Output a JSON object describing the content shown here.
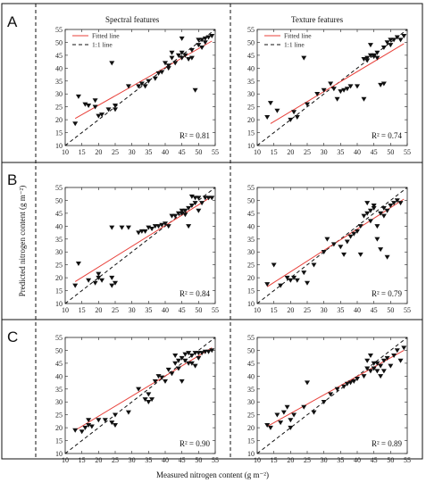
{
  "figure": {
    "xlabel": "Measured nitrogen content  (g m⁻²)",
    "ylabel": "Predicted nitrogen content  (g m⁻²)",
    "columns": [
      "Spectral features",
      "Texture features"
    ],
    "rows": [
      "A",
      "B",
      "C"
    ],
    "legend": {
      "fitted": "Fitted line",
      "one_to_one": "1:1 line"
    },
    "colors": {
      "fitted": "#e8403a",
      "one_to_one": "#111111",
      "marker": "#111111"
    }
  },
  "chart_data": [
    {
      "type": "scatter",
      "row": "A",
      "column": "Spectral features",
      "r2_label": "R² = 0.81",
      "xlim": [
        10,
        55
      ],
      "ylim": [
        10,
        55
      ],
      "xticks": [
        10,
        15,
        20,
        25,
        30,
        35,
        40,
        45,
        50,
        55
      ],
      "yticks": [
        10,
        15,
        20,
        25,
        30,
        35,
        40,
        45,
        50,
        55
      ],
      "fit": [
        [
          13,
          20.5
        ],
        [
          54,
          50.5
        ]
      ],
      "points": [
        [
          13,
          18.5
        ],
        [
          14,
          29
        ],
        [
          16,
          26
        ],
        [
          17,
          25.5
        ],
        [
          19,
          27.5
        ],
        [
          19,
          25
        ],
        [
          20,
          21.5
        ],
        [
          21,
          22
        ],
        [
          23,
          24
        ],
        [
          24,
          42
        ],
        [
          25,
          25.5
        ],
        [
          25,
          24
        ],
        [
          29,
          33
        ],
        [
          32,
          33
        ],
        [
          33,
          34
        ],
        [
          34,
          33
        ],
        [
          35,
          35
        ],
        [
          37,
          36
        ],
        [
          38,
          38
        ],
        [
          39,
          38.5
        ],
        [
          40,
          42
        ],
        [
          41,
          41
        ],
        [
          41,
          40
        ],
        [
          42,
          44
        ],
        [
          42,
          46
        ],
        [
          43,
          42
        ],
        [
          44,
          45
        ],
        [
          45,
          44
        ],
        [
          45,
          46
        ],
        [
          45,
          51.5
        ],
        [
          46,
          45
        ],
        [
          47,
          43.5
        ],
        [
          48,
          47
        ],
        [
          48,
          44
        ],
        [
          49,
          31.5
        ],
        [
          50,
          51
        ],
        [
          50,
          49
        ],
        [
          51,
          51
        ],
        [
          51,
          48
        ],
        [
          52,
          51.5
        ],
        [
          53,
          52
        ],
        [
          54,
          52.5
        ],
        [
          52,
          50
        ]
      ]
    },
    {
      "type": "scatter",
      "row": "A",
      "column": "Texture features",
      "r2_label": "R² = 0.74",
      "xlim": [
        10,
        55
      ],
      "ylim": [
        10,
        55
      ],
      "xticks": [
        10,
        15,
        20,
        25,
        30,
        35,
        40,
        45,
        50,
        55
      ],
      "yticks": [
        10,
        15,
        20,
        25,
        30,
        35,
        40,
        45,
        50,
        55
      ],
      "fit": [
        [
          14,
          18.5
        ],
        [
          54,
          49.5
        ]
      ],
      "points": [
        [
          13,
          21
        ],
        [
          14,
          26.5
        ],
        [
          16,
          23.5
        ],
        [
          20,
          20
        ],
        [
          21,
          23
        ],
        [
          22,
          21
        ],
        [
          24,
          44
        ],
        [
          25,
          26
        ],
        [
          28,
          30
        ],
        [
          30,
          31.5
        ],
        [
          32,
          34
        ],
        [
          33,
          32
        ],
        [
          34,
          28
        ],
        [
          35,
          31
        ],
        [
          36,
          31.5
        ],
        [
          37,
          32
        ],
        [
          38,
          33
        ],
        [
          40,
          33
        ],
        [
          42,
          28
        ],
        [
          42,
          43.5
        ],
        [
          43,
          44
        ],
        [
          43,
          43
        ],
        [
          44,
          49
        ],
        [
          44,
          45
        ],
        [
          45,
          45
        ],
        [
          45,
          44.5
        ],
        [
          46,
          44
        ],
        [
          46,
          46
        ],
        [
          47,
          33.5
        ],
        [
          48,
          34
        ],
        [
          48,
          48
        ],
        [
          49,
          50
        ],
        [
          50,
          49
        ],
        [
          50,
          51
        ],
        [
          51,
          51
        ],
        [
          52,
          52
        ],
        [
          53,
          51
        ],
        [
          54,
          52.5
        ]
      ]
    },
    {
      "type": "scatter",
      "row": "B",
      "column": "Spectral features",
      "r2_label": "R² = 0.84",
      "xlim": [
        10,
        55
      ],
      "ylim": [
        10,
        55
      ],
      "xticks": [
        10,
        15,
        20,
        25,
        30,
        35,
        40,
        45,
        50,
        55
      ],
      "yticks": [
        10,
        15,
        20,
        25,
        30,
        35,
        40,
        45,
        50,
        55
      ],
      "fit": [
        [
          13,
          18.5
        ],
        [
          54,
          51.5
        ]
      ],
      "points": [
        [
          13,
          17
        ],
        [
          14,
          25.5
        ],
        [
          17,
          19
        ],
        [
          19,
          18
        ],
        [
          20,
          20
        ],
        [
          20,
          21.5
        ],
        [
          21,
          19
        ],
        [
          24,
          20
        ],
        [
          24,
          17
        ],
        [
          25,
          18
        ],
        [
          24,
          39.5
        ],
        [
          27,
          39.5
        ],
        [
          29,
          39.5
        ],
        [
          32,
          37.5
        ],
        [
          33,
          38
        ],
        [
          34,
          38
        ],
        [
          35,
          39.5
        ],
        [
          36,
          39
        ],
        [
          37,
          40
        ],
        [
          38,
          40
        ],
        [
          39,
          40.5
        ],
        [
          40,
          41
        ],
        [
          41,
          40
        ],
        [
          42,
          44
        ],
        [
          43,
          44
        ],
        [
          44,
          45
        ],
        [
          45,
          46
        ],
        [
          45,
          45
        ],
        [
          46,
          46
        ],
        [
          46,
          44.5
        ],
        [
          47,
          40
        ],
        [
          47,
          47
        ],
        [
          48,
          48
        ],
        [
          48,
          51.5
        ],
        [
          49,
          51
        ],
        [
          49,
          49
        ],
        [
          50,
          51
        ],
        [
          50,
          46
        ],
        [
          51,
          49
        ],
        [
          52,
          51
        ],
        [
          53,
          51
        ],
        [
          54,
          51
        ]
      ]
    },
    {
      "type": "scatter",
      "row": "B",
      "column": "Texture features",
      "r2_label": "R² = 0.79",
      "xlim": [
        10,
        55
      ],
      "ylim": [
        10,
        55
      ],
      "xticks": [
        10,
        15,
        20,
        25,
        30,
        35,
        40,
        45,
        50,
        55
      ],
      "yticks": [
        10,
        15,
        20,
        25,
        30,
        35,
        40,
        45,
        50,
        55
      ],
      "fit": [
        [
          13,
          16.5
        ],
        [
          54,
          50.5
        ]
      ],
      "points": [
        [
          13,
          17.5
        ],
        [
          15,
          25
        ],
        [
          17,
          17
        ],
        [
          19,
          20
        ],
        [
          20,
          19
        ],
        [
          21,
          20
        ],
        [
          22,
          19
        ],
        [
          24,
          22
        ],
        [
          25,
          18
        ],
        [
          27,
          25
        ],
        [
          30,
          30
        ],
        [
          31,
          35
        ],
        [
          33,
          33
        ],
        [
          35,
          32
        ],
        [
          36,
          29
        ],
        [
          37,
          34
        ],
        [
          38,
          36
        ],
        [
          39,
          37
        ],
        [
          40,
          38
        ],
        [
          41,
          29
        ],
        [
          41,
          40
        ],
        [
          42,
          44
        ],
        [
          43,
          45
        ],
        [
          43,
          49
        ],
        [
          44,
          42
        ],
        [
          44,
          46
        ],
        [
          45,
          47
        ],
        [
          45,
          48
        ],
        [
          46,
          40
        ],
        [
          46,
          35
        ],
        [
          47,
          31
        ],
        [
          47,
          45
        ],
        [
          48,
          44
        ],
        [
          48,
          47
        ],
        [
          49,
          28
        ],
        [
          49,
          46
        ],
        [
          50,
          48
        ],
        [
          51,
          49
        ],
        [
          52,
          50
        ],
        [
          53,
          49
        ]
      ]
    },
    {
      "type": "scatter",
      "row": "C",
      "column": "Spectral features",
      "r2_label": "R² = 0.90",
      "xlim": [
        10,
        55
      ],
      "ylim": [
        10,
        55
      ],
      "xticks": [
        10,
        15,
        20,
        25,
        30,
        35,
        40,
        45,
        50,
        55
      ],
      "yticks": [
        10,
        15,
        20,
        25,
        30,
        35,
        40,
        45,
        50,
        55
      ],
      "fit": [
        [
          13,
          19
        ],
        [
          54,
          51
        ]
      ],
      "points": [
        [
          13,
          19
        ],
        [
          15,
          18.5
        ],
        [
          16,
          20
        ],
        [
          17,
          23
        ],
        [
          17,
          21
        ],
        [
          18,
          20.5
        ],
        [
          20,
          23
        ],
        [
          22,
          23
        ],
        [
          24,
          22
        ],
        [
          25,
          21
        ],
        [
          25,
          25
        ],
        [
          29,
          26
        ],
        [
          32,
          35
        ],
        [
          34,
          31
        ],
        [
          35,
          33
        ],
        [
          35,
          30
        ],
        [
          36,
          31
        ],
        [
          37,
          38
        ],
        [
          38,
          40
        ],
        [
          39,
          39.5
        ],
        [
          40,
          38
        ],
        [
          41,
          42.5
        ],
        [
          42,
          41
        ],
        [
          43,
          45
        ],
        [
          43,
          48
        ],
        [
          44,
          43
        ],
        [
          44,
          46
        ],
        [
          45,
          38
        ],
        [
          45,
          47
        ],
        [
          46,
          46
        ],
        [
          46,
          48.5
        ],
        [
          47,
          45
        ],
        [
          47,
          49
        ],
        [
          48,
          45
        ],
        [
          48,
          48
        ],
        [
          49,
          44
        ],
        [
          49,
          49
        ],
        [
          50,
          47
        ],
        [
          50,
          49
        ],
        [
          51,
          49
        ],
        [
          52,
          49.5
        ],
        [
          53,
          49.5
        ],
        [
          54,
          50
        ]
      ]
    },
    {
      "type": "scatter",
      "row": "C",
      "column": "Texture features",
      "r2_label": "R² = 0.89",
      "xlim": [
        10,
        55
      ],
      "ylim": [
        10,
        55
      ],
      "xticks": [
        10,
        15,
        20,
        25,
        30,
        35,
        40,
        45,
        50,
        55
      ],
      "yticks": [
        10,
        15,
        20,
        25,
        30,
        35,
        40,
        45,
        50,
        55
      ],
      "fit": [
        [
          13,
          20.5
        ],
        [
          54,
          50
        ]
      ],
      "points": [
        [
          13,
          21
        ],
        [
          14,
          20
        ],
        [
          16,
          25
        ],
        [
          17,
          22
        ],
        [
          18,
          26
        ],
        [
          19,
          28
        ],
        [
          20,
          20
        ],
        [
          20,
          23
        ],
        [
          21,
          25
        ],
        [
          24,
          28
        ],
        [
          25,
          37.5
        ],
        [
          27,
          26
        ],
        [
          30,
          30
        ],
        [
          32,
          33
        ],
        [
          34,
          35
        ],
        [
          36,
          36
        ],
        [
          37,
          37
        ],
        [
          38,
          37.5
        ],
        [
          39,
          38
        ],
        [
          40,
          39
        ],
        [
          42,
          40
        ],
        [
          43,
          43
        ],
        [
          43,
          46
        ],
        [
          44,
          42
        ],
        [
          44,
          48
        ],
        [
          45,
          45
        ],
        [
          45,
          43
        ],
        [
          46,
          42
        ],
        [
          46,
          45
        ],
        [
          47,
          44
        ],
        [
          47,
          40
        ],
        [
          48,
          46
        ],
        [
          48,
          42
        ],
        [
          49,
          47
        ],
        [
          50,
          44
        ],
        [
          51,
          48
        ],
        [
          52,
          50
        ],
        [
          53,
          46
        ],
        [
          54,
          51
        ]
      ]
    }
  ]
}
